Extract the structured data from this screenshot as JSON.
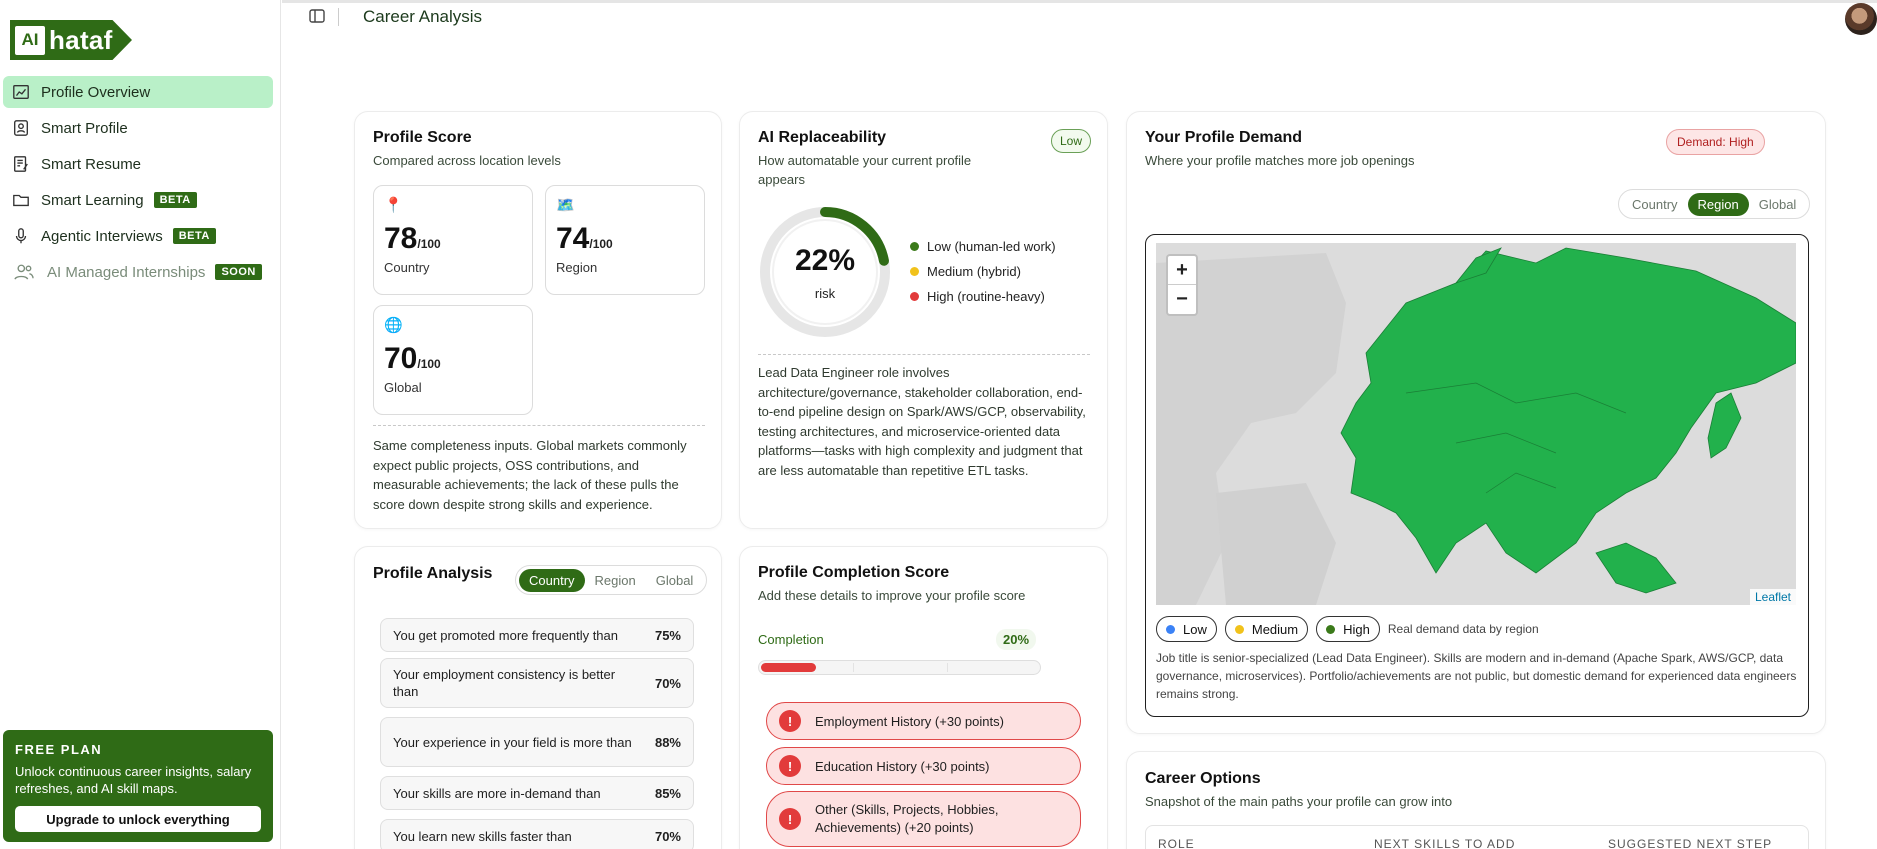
{
  "brand": {
    "logo_box": "AI",
    "logo_text": "hataf"
  },
  "sidebar": {
    "items": [
      {
        "label": "Profile Overview",
        "badge": ""
      },
      {
        "label": "Smart Profile",
        "badge": ""
      },
      {
        "label": "Smart Resume",
        "badge": ""
      },
      {
        "label": "Smart Learning",
        "badge": "BETA"
      },
      {
        "label": "Agentic Interviews",
        "badge": "BETA"
      },
      {
        "label": "AI Managed Internships",
        "badge": "SOON"
      }
    ],
    "plan": {
      "title": "FREE PLAN",
      "text": "Unlock continuous career insights, salary refreshes, and AI skill maps.",
      "button": "Upgrade to unlock everything"
    }
  },
  "header": {
    "title": "Career Analysis"
  },
  "profile_score": {
    "title": "Profile Score",
    "subtitle": "Compared across location levels",
    "denominator": "/100",
    "boxes": [
      {
        "icon": "📍",
        "value": "78",
        "label": "Country"
      },
      {
        "icon": "🗺️",
        "value": "74",
        "label": "Region"
      },
      {
        "icon": "🌐",
        "value": "70",
        "label": "Global"
      }
    ],
    "note": "Same completeness inputs. Global markets commonly expect public projects, OSS contributions, and measurable achievements; the lack of these pulls the score down despite strong skills and experience."
  },
  "ai_replaceability": {
    "title": "AI Replaceability",
    "subtitle": "How automatable your current profile appears",
    "pill": "Low",
    "percent": "22%",
    "percent_value": 22,
    "risk_label": "risk",
    "legend": [
      {
        "label": "Low (human-led work)",
        "color": "#3b7a1a"
      },
      {
        "label": "Medium (hybrid)",
        "color": "#f1c21b"
      },
      {
        "label": "High (routine-heavy)",
        "color": "#e23b3b"
      }
    ],
    "description": "Lead Data Engineer role involves architecture/governance, stakeholder collaboration, end-to-end pipeline design on Spark/AWS/GCP, observability, testing architectures, and microservice-oriented data platforms—tasks with high complexity and judgment that are less automatable than repetitive ETL tasks."
  },
  "profile_demand": {
    "title": "Your Profile Demand",
    "subtitle": "Where your profile matches more job openings",
    "pill": "Demand: High",
    "tabs": [
      "Country",
      "Region",
      "Global"
    ],
    "active_tab": "Region",
    "zoom_in": "+",
    "zoom_out": "−",
    "attribution": "Leaflet",
    "legend": [
      {
        "label": "Low",
        "color": "#3b82f6"
      },
      {
        "label": "Medium",
        "color": "#f1c21b"
      },
      {
        "label": "High",
        "color": "#3b7a1a"
      }
    ],
    "legend_note": "Real demand data by region",
    "description": "Job title is senior-specialized (Lead Data Engineer). Skills are modern and in-demand (Apache Spark, AWS/GCP, data governance, microservices). Portfolio/achievements are not public, but domestic demand for experienced data engineers remains strong."
  },
  "profile_analysis": {
    "title": "Profile Analysis",
    "tabs": [
      "Country",
      "Region",
      "Global"
    ],
    "active_tab": "Country",
    "rows": [
      {
        "text": "You get promoted more frequently than",
        "value": "75%"
      },
      {
        "text": "Your employment consistency is better than",
        "value": "70%"
      },
      {
        "text": "Your experience in your field is more than",
        "value": "88%"
      },
      {
        "text": "Your skills are more in-demand than",
        "value": "85%"
      },
      {
        "text": "You learn new skills faster than",
        "value": "70%"
      }
    ]
  },
  "completion": {
    "title": "Profile Completion Score",
    "subtitle": "Add these details to improve your profile score",
    "label": "Completion",
    "value": "20%",
    "fraction": 0.2,
    "missing": [
      "Employment History (+30 points)",
      "Education History (+30 points)",
      "Other (Skills, Projects, Hobbies, Achievements) (+20 points)"
    ]
  },
  "career_options": {
    "title": "Career Options",
    "subtitle": "Snapshot of the main paths your profile can grow into",
    "columns": [
      "ROLE",
      "NEXT SKILLS TO ADD",
      "SUGGESTED NEXT STEP"
    ]
  },
  "colors": {
    "brand": "#2f6b16",
    "active_nav": "#b9f0c8",
    "map_land": "#22b14c",
    "danger": "#e23b3b"
  }
}
